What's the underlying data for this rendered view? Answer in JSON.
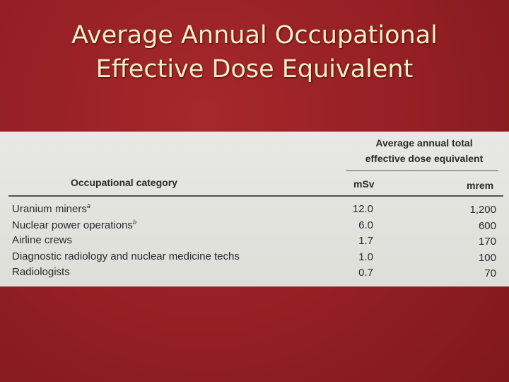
{
  "title_lines": [
    "Average Annual Occupational",
    "Effective Dose Equivalent"
  ],
  "table": {
    "group_header": [
      "Average annual total",
      "effective dose equivalent"
    ],
    "columns": [
      "Occupational category",
      "mSv",
      "mrem"
    ],
    "rows": [
      {
        "category": "Uranium miners",
        "note": "a",
        "msv": "12.0",
        "mrem": "1,200"
      },
      {
        "category": "Nuclear power operations",
        "note": "b",
        "msv": "6.0",
        "mrem": "600"
      },
      {
        "category": "Airline crews",
        "msv": "1.7",
        "mrem": "170"
      },
      {
        "category": "Diagnostic radiology and nuclear medicine techs",
        "msv": "1.0",
        "mrem": "100"
      },
      {
        "category": "Radiologists",
        "msv": "0.7",
        "mrem": "70"
      }
    ]
  }
}
